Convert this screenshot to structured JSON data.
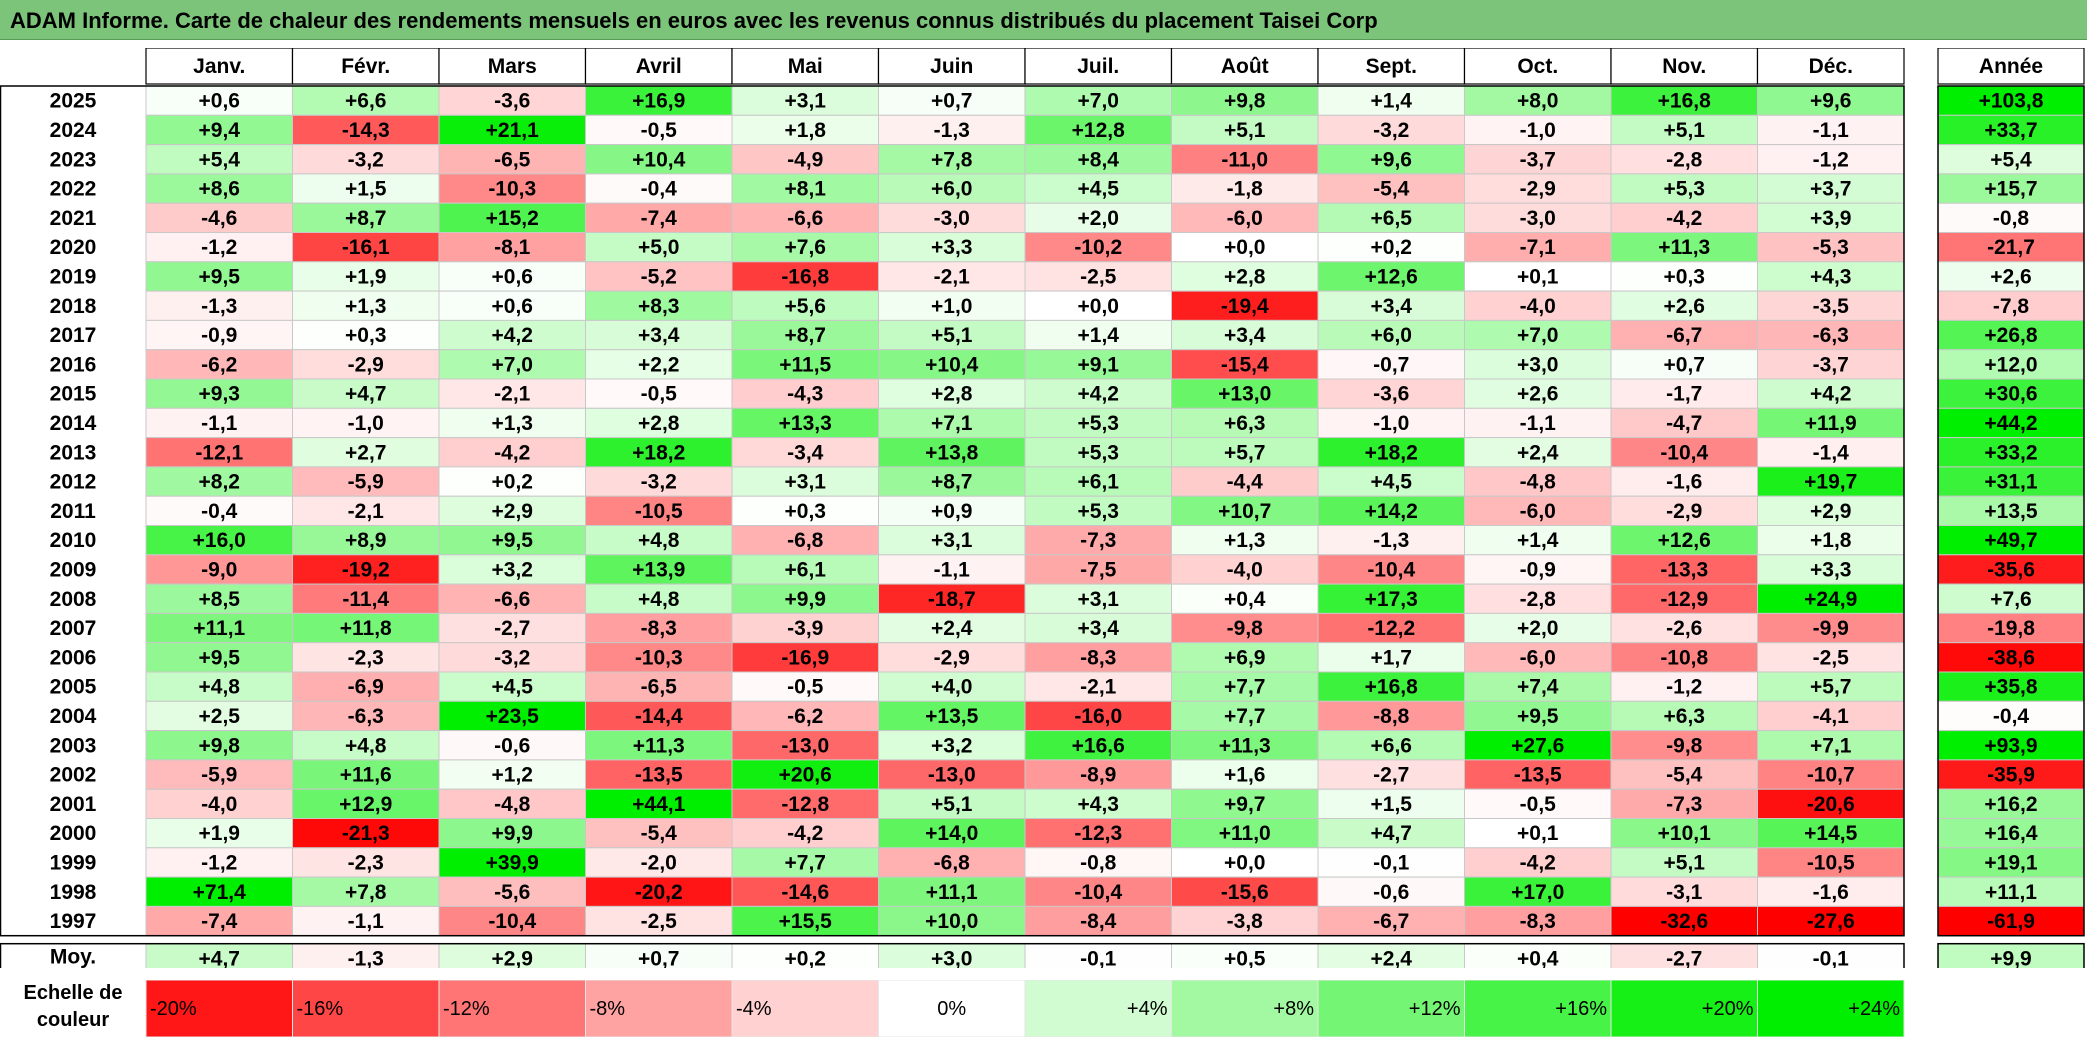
{
  "title": "ADAM Informe. Carte de chaleur des rendements mensuels en euros avec les revenus connus distribués du placement Taisei Corp",
  "chart_data": {
    "type": "heatmap",
    "months": [
      "Janv.",
      "Févr.",
      "Mars",
      "Avril",
      "Mai",
      "Juin",
      "Juil.",
      "Août",
      "Sept.",
      "Oct.",
      "Nov.",
      "Déc."
    ],
    "year_header": "Année",
    "rows": [
      {
        "year": "2025",
        "values": [
          0.6,
          6.6,
          -3.6,
          16.9,
          3.1,
          0.7,
          7.0,
          9.8,
          1.4,
          8.0,
          16.8,
          9.6
        ],
        "annual": 103.8
      },
      {
        "year": "2024",
        "values": [
          9.4,
          -14.3,
          21.1,
          -0.5,
          1.8,
          -1.3,
          12.8,
          5.1,
          -3.2,
          -1.0,
          5.1,
          -1.1
        ],
        "annual": 33.7
      },
      {
        "year": "2023",
        "values": [
          5.4,
          -3.2,
          -6.5,
          10.4,
          -4.9,
          7.8,
          8.4,
          -11.0,
          9.6,
          -3.7,
          -2.8,
          -1.2
        ],
        "annual": 5.4
      },
      {
        "year": "2022",
        "values": [
          8.6,
          1.5,
          -10.3,
          -0.4,
          8.1,
          6.0,
          4.5,
          -1.8,
          -5.4,
          -2.9,
          5.3,
          3.7
        ],
        "annual": 15.7
      },
      {
        "year": "2021",
        "values": [
          -4.6,
          8.7,
          15.2,
          -7.4,
          -6.6,
          -3.0,
          2.0,
          -6.0,
          6.5,
          -3.0,
          -4.2,
          3.9
        ],
        "annual": -0.8
      },
      {
        "year": "2020",
        "values": [
          -1.2,
          -16.1,
          -8.1,
          5.0,
          7.6,
          3.3,
          -10.2,
          0.0,
          0.2,
          -7.1,
          11.3,
          -5.3
        ],
        "annual": -21.7
      },
      {
        "year": "2019",
        "values": [
          9.5,
          1.9,
          0.6,
          -5.2,
          -16.8,
          -2.1,
          -2.5,
          2.8,
          12.6,
          0.1,
          0.3,
          4.3
        ],
        "annual": 2.6
      },
      {
        "year": "2018",
        "values": [
          -1.3,
          1.3,
          0.6,
          8.3,
          5.6,
          1.0,
          0.0,
          -19.4,
          3.4,
          -4.0,
          2.6,
          -3.5
        ],
        "annual": -7.8
      },
      {
        "year": "2017",
        "values": [
          -0.9,
          0.3,
          4.2,
          3.4,
          8.7,
          5.1,
          1.4,
          3.4,
          6.0,
          7.0,
          -6.7,
          -6.3
        ],
        "annual": 26.8
      },
      {
        "year": "2016",
        "values": [
          -6.2,
          -2.9,
          7.0,
          2.2,
          11.5,
          10.4,
          9.1,
          -15.4,
          -0.7,
          3.0,
          0.7,
          -3.7
        ],
        "annual": 12.0
      },
      {
        "year": "2015",
        "values": [
          9.3,
          4.7,
          -2.1,
          -0.5,
          -4.3,
          2.8,
          4.2,
          13.0,
          -3.6,
          2.6,
          -1.7,
          4.2
        ],
        "annual": 30.6
      },
      {
        "year": "2014",
        "values": [
          -1.1,
          -1.0,
          1.3,
          2.8,
          13.3,
          7.1,
          5.3,
          6.3,
          -1.0,
          -1.1,
          -4.7,
          11.9
        ],
        "annual": 44.2
      },
      {
        "year": "2013",
        "values": [
          -12.1,
          2.7,
          -4.2,
          18.2,
          -3.4,
          13.8,
          5.3,
          5.7,
          18.2,
          2.4,
          -10.4,
          -1.4
        ],
        "annual": 33.2
      },
      {
        "year": "2012",
        "values": [
          8.2,
          -5.9,
          0.2,
          -3.2,
          3.1,
          8.7,
          6.1,
          -4.4,
          4.5,
          -4.8,
          -1.6,
          19.7
        ],
        "annual": 31.1
      },
      {
        "year": "2011",
        "values": [
          -0.4,
          -2.1,
          2.9,
          -10.5,
          0.3,
          0.9,
          5.3,
          10.7,
          14.2,
          -6.0,
          -2.9,
          2.9
        ],
        "annual": 13.5
      },
      {
        "year": "2010",
        "values": [
          16.0,
          8.9,
          9.5,
          4.8,
          -6.8,
          3.1,
          -7.3,
          1.3,
          -1.3,
          1.4,
          12.6,
          1.8
        ],
        "annual": 49.7
      },
      {
        "year": "2009",
        "values": [
          -9.0,
          -19.2,
          3.2,
          13.9,
          6.1,
          -1.1,
          -7.5,
          -4.0,
          -10.4,
          -0.9,
          -13.3,
          3.3
        ],
        "annual": -35.6
      },
      {
        "year": "2008",
        "values": [
          8.5,
          -11.4,
          -6.6,
          4.8,
          9.9,
          -18.7,
          3.1,
          0.4,
          17.3,
          -2.8,
          -12.9,
          24.9
        ],
        "annual": 7.6
      },
      {
        "year": "2007",
        "values": [
          11.1,
          11.8,
          -2.7,
          -8.3,
          -3.9,
          2.4,
          3.4,
          -9.8,
          -12.2,
          2.0,
          -2.6,
          -9.9
        ],
        "annual": -19.8
      },
      {
        "year": "2006",
        "values": [
          9.5,
          -2.3,
          -3.2,
          -10.3,
          -16.9,
          -2.9,
          -8.3,
          6.9,
          1.7,
          -6.0,
          -10.8,
          -2.5
        ],
        "annual": -38.6
      },
      {
        "year": "2005",
        "values": [
          4.8,
          -6.9,
          4.5,
          -6.5,
          -0.5,
          4.0,
          -2.1,
          7.7,
          16.8,
          7.4,
          -1.2,
          5.7
        ],
        "annual": 35.8
      },
      {
        "year": "2004",
        "values": [
          2.5,
          -6.3,
          23.5,
          -14.4,
          -6.2,
          13.5,
          -16.0,
          7.7,
          -8.8,
          9.5,
          6.3,
          -4.1
        ],
        "annual": -0.4
      },
      {
        "year": "2003",
        "values": [
          9.8,
          4.8,
          -0.6,
          11.3,
          -13.0,
          3.2,
          16.6,
          11.3,
          6.6,
          27.6,
          -9.8,
          7.1
        ],
        "annual": 93.9
      },
      {
        "year": "2002",
        "values": [
          -5.9,
          11.6,
          1.2,
          -13.5,
          20.6,
          -13.0,
          -8.9,
          1.6,
          -2.7,
          -13.5,
          -5.4,
          -10.7
        ],
        "annual": -35.9
      },
      {
        "year": "2001",
        "values": [
          -4.0,
          12.9,
          -4.8,
          44.1,
          -12.8,
          5.1,
          4.3,
          9.7,
          1.5,
          -0.5,
          -7.3,
          -20.6
        ],
        "annual": 16.2
      },
      {
        "year": "2000",
        "values": [
          1.9,
          -21.3,
          9.9,
          -5.4,
          -4.2,
          14.0,
          -12.3,
          11.0,
          4.7,
          0.1,
          10.1,
          14.5
        ],
        "annual": 16.4
      },
      {
        "year": "1999",
        "values": [
          -1.2,
          -2.3,
          39.9,
          -2.0,
          7.7,
          -6.8,
          -0.8,
          0.0,
          -0.1,
          -4.2,
          5.1,
          -10.5
        ],
        "annual": 19.1
      },
      {
        "year": "1998",
        "values": [
          71.4,
          7.8,
          -5.6,
          -20.2,
          -14.6,
          11.1,
          -10.4,
          -15.6,
          -0.6,
          17.0,
          -3.1,
          -1.6
        ],
        "annual": 11.1
      },
      {
        "year": "1997",
        "values": [
          -7.4,
          -1.1,
          -10.4,
          -2.5,
          15.5,
          10.0,
          -8.4,
          -3.8,
          -6.7,
          -8.3,
          -32.6,
          -27.6
        ],
        "annual": -61.9
      }
    ],
    "average": {
      "label": "Moy.",
      "values": [
        4.7,
        -1.3,
        2.9,
        0.7,
        0.2,
        3.0,
        -0.1,
        0.5,
        2.4,
        0.4,
        -2.7,
        -0.1
      ],
      "annual": 9.9
    },
    "legend": {
      "title": "Echelle de couleur",
      "labels": [
        "-20%",
        "-16%",
        "-12%",
        "-8%",
        "-4%",
        "0%",
        "+4%",
        "+8%",
        "+12%",
        "+16%",
        "+20%",
        "+24%"
      ],
      "values": [
        -20,
        -16,
        -12,
        -8,
        -4,
        0,
        4,
        8,
        12,
        16,
        20,
        24
      ]
    },
    "colors": {
      "negative": "#ff0000",
      "zero": "#ffffff",
      "positive": "#00ee00",
      "grid": "#c8c8c8"
    }
  }
}
